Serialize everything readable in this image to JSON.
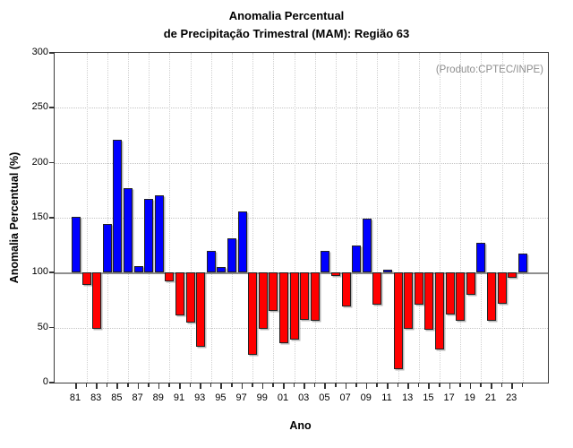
{
  "header": {
    "title_line1": "Anomalia Percentual",
    "title_line2": "de Precipitação Trimestral (MAM): Região 63"
  },
  "annotation": "(Produto:CPTEC/INPE)",
  "chart_data": {
    "type": "bar",
    "title": "Anomalia Percentual de Precipitação Trimestral (MAM): Região 63",
    "xlabel": "Ano",
    "ylabel": "Anomalia Percentual (%)",
    "ylim": [
      0,
      300
    ],
    "yticks": [
      0,
      50,
      100,
      150,
      200,
      250,
      300
    ],
    "baseline": 100,
    "grid": true,
    "legend_position": "none",
    "years": [
      1981,
      1982,
      1983,
      1984,
      1985,
      1986,
      1987,
      1988,
      1989,
      1990,
      1991,
      1992,
      1993,
      1994,
      1995,
      1996,
      1997,
      1998,
      1999,
      2000,
      2001,
      2002,
      2003,
      2004,
      2005,
      2006,
      2007,
      2008,
      2009,
      2010,
      2011,
      2012,
      2013,
      2014,
      2015,
      2016,
      2017,
      2018,
      2019,
      2020,
      2021,
      2022,
      2023,
      2024
    ],
    "x_tick_labels": [
      "81",
      "83",
      "85",
      "87",
      "89",
      "91",
      "93",
      "95",
      "97",
      "99",
      "01",
      "03",
      "05",
      "07",
      "09",
      "11",
      "13",
      "15",
      "17",
      "19",
      "21",
      "23"
    ],
    "values": [
      151,
      89,
      49,
      144,
      221,
      177,
      106,
      167,
      170,
      92,
      61,
      55,
      33,
      120,
      105,
      131,
      156,
      25,
      49,
      65,
      36,
      39,
      57,
      56,
      120,
      97,
      69,
      125,
      149,
      71,
      103,
      12,
      49,
      71,
      48,
      30,
      62,
      56,
      80,
      127,
      56,
      72,
      95,
      117
    ],
    "colors": {
      "above_baseline": "#0000ff",
      "below_baseline": "#ff0000",
      "baseline_line": "#8f8f8f",
      "annotation_text": "#8e8e8e"
    }
  }
}
